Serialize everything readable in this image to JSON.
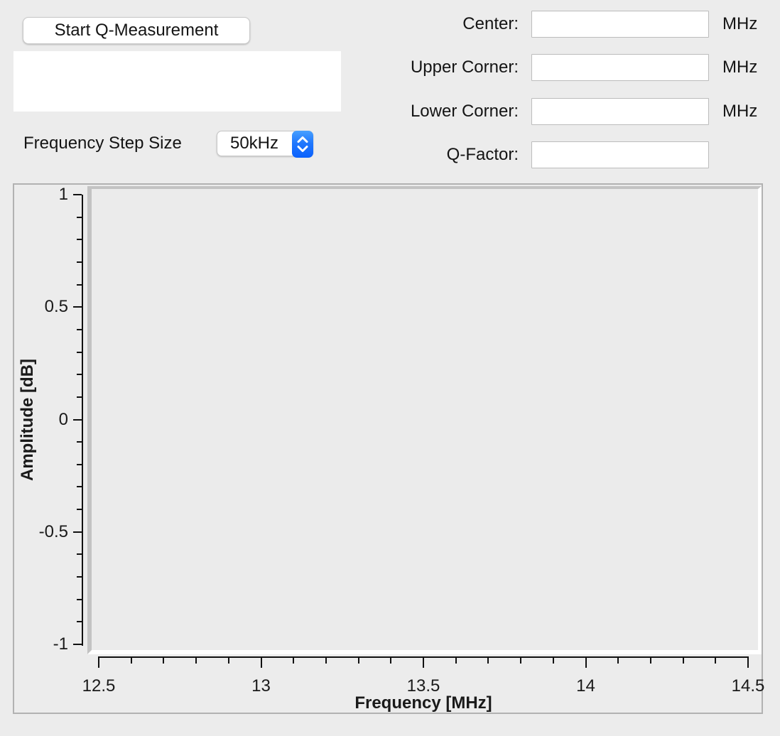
{
  "app": {
    "background_color": "#ececec",
    "accent_blue": "#0a61fd"
  },
  "controls": {
    "start_button_label": "Start Q-Measurement",
    "status_display_text": "",
    "step_size_label": "Frequency Step Size",
    "step_size_value": "50kHz",
    "stepper_icon": "up-down-chevrons"
  },
  "form": {
    "rows": [
      {
        "label": "Center:",
        "value": "",
        "unit": "MHz"
      },
      {
        "label": "Upper Corner:",
        "value": "",
        "unit": "MHz"
      },
      {
        "label": "Lower Corner:",
        "value": "",
        "unit": "MHz"
      },
      {
        "label": "Q-Factor:",
        "value": "",
        "unit": ""
      }
    ]
  },
  "chart_data": {
    "type": "line",
    "title": "",
    "xlabel": "Frequency [MHz]",
    "ylabel": "Amplitude [dB]",
    "xlim": [
      12.5,
      14.5
    ],
    "ylim": [
      -1,
      1
    ],
    "x_ticks": [
      12.5,
      13,
      13.5,
      14,
      14.5
    ],
    "x_tick_labels": [
      "12.5",
      "13",
      "13.5",
      "14",
      "14.5"
    ],
    "y_ticks": [
      1,
      0.5,
      0,
      -0.5,
      -1
    ],
    "y_tick_labels": [
      "1",
      "0.5",
      "0",
      "-0.5",
      "-1"
    ],
    "minor_tick_step": 0.1,
    "grid": false,
    "legend": false,
    "series": []
  }
}
